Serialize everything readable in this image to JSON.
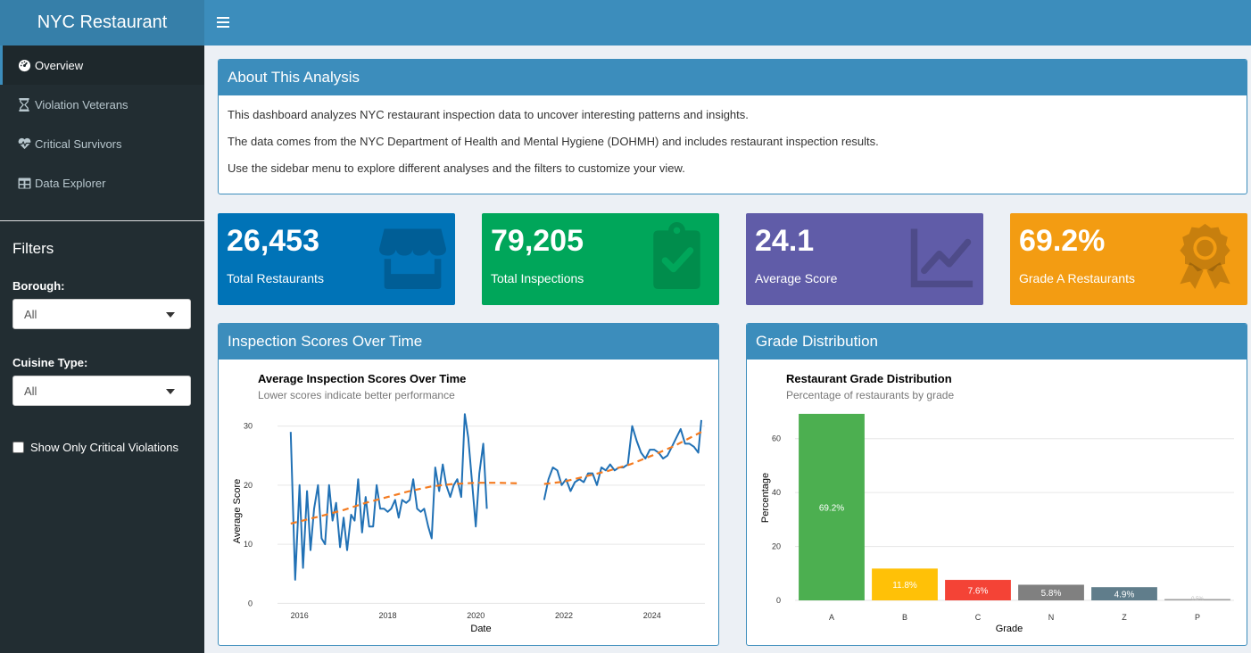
{
  "app": {
    "title": "NYC Restaurant"
  },
  "sidebar": {
    "menu": [
      {
        "label": "Overview",
        "icon": "tachometer-icon",
        "active": true
      },
      {
        "label": "Violation Veterans",
        "icon": "hourglass-icon",
        "active": false
      },
      {
        "label": "Critical Survivors",
        "icon": "heartbeat-icon",
        "active": false
      },
      {
        "label": "Data Explorer",
        "icon": "table-icon",
        "active": false
      }
    ],
    "filters_title": "Filters",
    "borough": {
      "label": "Borough:",
      "value": "All"
    },
    "cuisine": {
      "label": "Cuisine Type:",
      "value": "All"
    },
    "critical_checkbox": {
      "label": "Show Only Critical Violations",
      "checked": false
    }
  },
  "about": {
    "title": "About This Analysis",
    "lines": [
      "This dashboard analyzes NYC restaurant inspection data to uncover interesting patterns and insights.",
      "The data comes from the NYC Department of Health and Mental Hygiene (DOHMH) and includes restaurant inspection results.",
      "Use the sidebar menu to explore different analyses and the filters to customize your view."
    ]
  },
  "value_boxes": [
    {
      "value": "26,453",
      "label": "Total Restaurants",
      "color": "#0073b7",
      "icon": "store-icon"
    },
    {
      "value": "79,205",
      "label": "Total Inspections",
      "color": "#00a65a",
      "icon": "clipboard-check-icon"
    },
    {
      "value": "24.1",
      "label": "Average Score",
      "color": "#605ca8",
      "icon": "line-chart-icon"
    },
    {
      "value": "69.2%",
      "label": "Grade A Restaurants",
      "color": "#f39c12",
      "icon": "award-icon"
    }
  ],
  "scores_panel": {
    "title": "Inspection Scores Over Time"
  },
  "grade_panel": {
    "title": "Grade Distribution"
  },
  "chart_data": [
    {
      "type": "line",
      "title": "Average Inspection Scores Over Time",
      "subtitle": "Lower scores indicate better performance",
      "xlabel": "Date",
      "ylabel": "Average Score",
      "xlim": [
        2015.5,
        2025.2
      ],
      "ylim": [
        -1,
        32.5
      ],
      "xticks": [
        2016,
        2018,
        2020,
        2022,
        2024
      ],
      "yticks": [
        0,
        10,
        20,
        30
      ],
      "series": [
        {
          "name": "Average Score",
          "color": "#2171b5",
          "segments": [
            [
              [
                2015.8,
                29
              ],
              [
                2015.9,
                4
              ],
              [
                2016.0,
                20
              ],
              [
                2016.08,
                6
              ],
              [
                2016.17,
                19
              ],
              [
                2016.25,
                9
              ],
              [
                2016.33,
                16
              ],
              [
                2016.42,
                20
              ],
              [
                2016.5,
                11
              ],
              [
                2016.58,
                10
              ],
              [
                2016.67,
                20
              ],
              [
                2016.75,
                14
              ],
              [
                2016.83,
                17
              ],
              [
                2016.92,
                9.5
              ],
              [
                2017.0,
                14.5
              ],
              [
                2017.08,
                9
              ],
              [
                2017.17,
                15
              ],
              [
                2017.25,
                14
              ],
              [
                2017.33,
                21
              ],
              [
                2017.42,
                12
              ],
              [
                2017.5,
                18
              ],
              [
                2017.58,
                13
              ],
              [
                2017.67,
                13
              ],
              [
                2017.75,
                20
              ],
              [
                2017.83,
                16
              ],
              [
                2017.92,
                16
              ],
              [
                2018.0,
                15.5
              ],
              [
                2018.08,
                16
              ],
              [
                2018.17,
                17.5
              ],
              [
                2018.25,
                14.5
              ],
              [
                2018.33,
                17.5
              ],
              [
                2018.42,
                17
              ],
              [
                2018.5,
                17.5
              ],
              [
                2018.58,
                21
              ],
              [
                2018.67,
                16
              ],
              [
                2018.75,
                15.5
              ],
              [
                2018.83,
                16
              ],
              [
                2018.92,
                13
              ],
              [
                2019.0,
                11
              ],
              [
                2019.08,
                23
              ],
              [
                2019.17,
                19
              ],
              [
                2019.25,
                23.5
              ],
              [
                2019.33,
                20
              ],
              [
                2019.42,
                18
              ],
              [
                2019.5,
                20
              ],
              [
                2019.58,
                21
              ],
              [
                2019.67,
                18
              ],
              [
                2019.75,
                32
              ],
              [
                2019.83,
                28
              ],
              [
                2019.92,
                20
              ],
              [
                2020.0,
                13
              ],
              [
                2020.08,
                22
              ],
              [
                2020.17,
                27
              ],
              [
                2020.25,
                16
              ]
            ],
            [
              [
                2021.55,
                17.5
              ],
              [
                2021.65,
                21
              ],
              [
                2021.75,
                23
              ],
              [
                2021.85,
                22.5
              ],
              [
                2021.95,
                20
              ],
              [
                2022.05,
                21
              ],
              [
                2022.15,
                19
              ],
              [
                2022.25,
                20.5
              ],
              [
                2022.35,
                21
              ],
              [
                2022.45,
                20.5
              ],
              [
                2022.55,
                22
              ],
              [
                2022.65,
                22
              ],
              [
                2022.75,
                20
              ],
              [
                2022.85,
                23
              ],
              [
                2022.95,
                22.5
              ],
              [
                2023.05,
                23.5
              ],
              [
                2023.15,
                22.5
              ],
              [
                2023.25,
                23
              ],
              [
                2023.35,
                23
              ],
              [
                2023.45,
                23.5
              ],
              [
                2023.55,
                30
              ],
              [
                2023.65,
                27.5
              ],
              [
                2023.75,
                25.5
              ],
              [
                2023.85,
                24.5
              ],
              [
                2023.95,
                26
              ],
              [
                2024.05,
                26
              ],
              [
                2024.15,
                25.5
              ],
              [
                2024.25,
                24.5
              ],
              [
                2024.35,
                25
              ],
              [
                2024.45,
                26.5
              ],
              [
                2024.55,
                28
              ],
              [
                2024.65,
                29.5
              ],
              [
                2024.75,
                27
              ],
              [
                2024.85,
                27
              ],
              [
                2024.95,
                26.5
              ],
              [
                2025.05,
                25.5
              ],
              [
                2025.12,
                31
              ]
            ]
          ]
        },
        {
          "name": "Trend",
          "color": "#f47b20",
          "dashed": true,
          "segments": [
            [
              [
                2015.8,
                13.5
              ],
              [
                2016.5,
                14.8
              ],
              [
                2017.0,
                15.8
              ],
              [
                2017.5,
                17
              ],
              [
                2018.0,
                18
              ],
              [
                2018.5,
                19
              ],
              [
                2019.0,
                19.8
              ],
              [
                2019.5,
                20.2
              ],
              [
                2020.0,
                20.4
              ],
              [
                2020.5,
                20.4
              ],
              [
                2021.0,
                20.3
              ]
            ],
            [
              [
                2021.55,
                20.2
              ],
              [
                2022.0,
                20.6
              ],
              [
                2022.5,
                21.5
              ],
              [
                2023.0,
                22.4
              ],
              [
                2023.5,
                23.5
              ],
              [
                2024.0,
                25
              ],
              [
                2024.5,
                26.6
              ],
              [
                2025.12,
                29
              ]
            ]
          ]
        }
      ]
    },
    {
      "type": "bar",
      "title": "Restaurant Grade Distribution",
      "subtitle": "Percentage of restaurants by grade",
      "xlabel": "Grade",
      "ylabel": "Percentage",
      "ylim": [
        0,
        69.5
      ],
      "yticks": [
        0,
        20,
        40,
        60
      ],
      "categories": [
        "A",
        "B",
        "C",
        "N",
        "Z",
        "P"
      ],
      "values": [
        69.2,
        11.8,
        7.6,
        5.8,
        4.9,
        0.5
      ],
      "labels": [
        "69.2%",
        "11.8%",
        "7.6%",
        "5.8%",
        "4.9%",
        "0.5%"
      ],
      "colors": [
        "#4caf50",
        "#ffc107",
        "#f44336",
        "#808080",
        "#607d8b",
        "#9e9e9e"
      ]
    }
  ]
}
